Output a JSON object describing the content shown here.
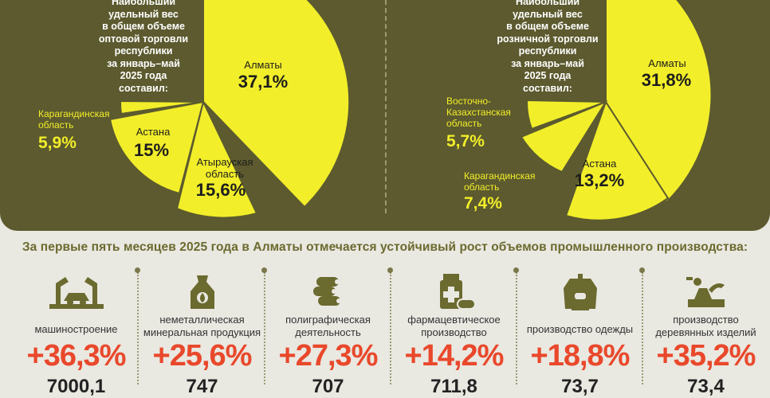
{
  "left": {
    "intro": [
      "Наибольший",
      "удельный вес",
      "в общем объеме",
      "оптовой торговли",
      "республики",
      "за январь–май",
      "2025 года",
      "составил:"
    ],
    "slices": [
      {
        "name": "Алматы",
        "value": "37,1%",
        "share": 37.1
      },
      {
        "name": "Атырауская область",
        "value": "15,6%",
        "share": 15.6
      },
      {
        "name": "Астана",
        "value": "15%",
        "share": 15.0
      },
      {
        "name": "Карагандинская область",
        "value": "5,9%",
        "share": 5.9
      }
    ]
  },
  "right": {
    "intro": [
      "Наибольший",
      "удельный вес",
      "в общем объеме",
      "розничной торговли",
      "республики",
      "за январь–май",
      "2025 года",
      "составил:"
    ],
    "slices": [
      {
        "name": "Алматы",
        "value": "31,8%",
        "share": 31.8
      },
      {
        "name": "Астана",
        "value": "13,2%",
        "share": 13.2
      },
      {
        "name": "Карагандинская область",
        "value": "7,4%",
        "share": 7.4
      },
      {
        "name": "Восточно-Казахстанская область",
        "value": "5,7%",
        "share": 5.7
      }
    ]
  },
  "headline": "За первые пять месяцев 2025 года в Алматы отмечается устойчивый рост объемов промышленного производства:",
  "industries": [
    {
      "label": [
        "машиностроение"
      ],
      "pct": "+36,3%",
      "bottom": "7000,1",
      "icon": "robot-arm-icon"
    },
    {
      "label": [
        "неметаллическая",
        "минеральная продукция"
      ],
      "pct": "+25,6%",
      "bottom": "747",
      "icon": "cement-bag-icon"
    },
    {
      "label": [
        "полиграфическая",
        "деятельность"
      ],
      "pct": "+27,3%",
      "bottom": "707",
      "icon": "paper-roll-icon"
    },
    {
      "label": [
        "фармацевтическое",
        "производство"
      ],
      "pct": "+14,2%",
      "bottom": "711,8",
      "icon": "medicine-icon"
    },
    {
      "label": [
        "производство одежды"
      ],
      "pct": "+18,8%",
      "bottom": "73,7",
      "icon": "sweater-icon"
    },
    {
      "label": [
        "производство",
        "деревянных изделий"
      ],
      "pct": "+35,2%",
      "bottom": "73,4",
      "icon": "wood-plane-icon"
    }
  ],
  "colors": {
    "panel": "#5c5a2e",
    "yellow": "#f2ee2a",
    "accent": "#e9482b",
    "background": "#e9e8e1"
  }
}
